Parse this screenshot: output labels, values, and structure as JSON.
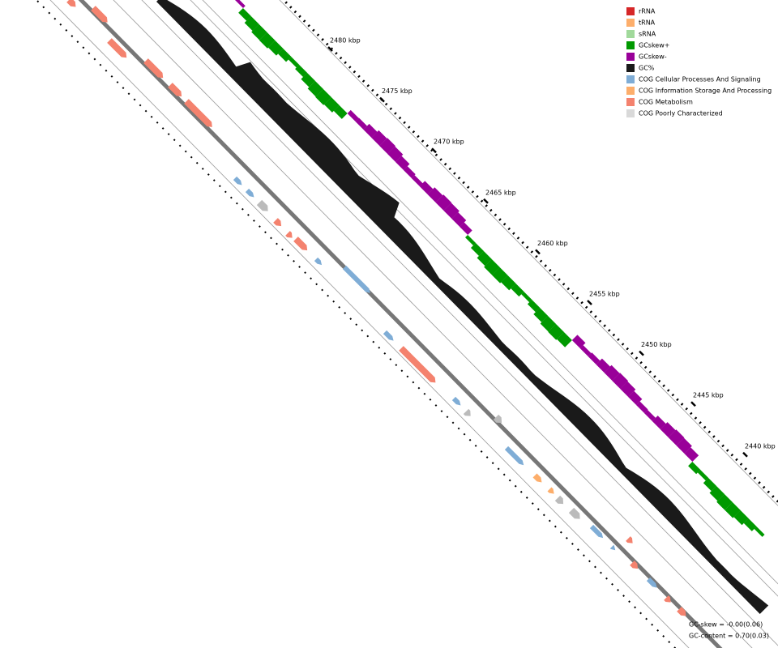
{
  "legend": [
    {
      "label": "rRNA",
      "color": "#d62728"
    },
    {
      "label": "tRNA",
      "color": "#fdae6b"
    },
    {
      "label": "sRNA",
      "color": "#a1d99b"
    },
    {
      "label": "GCskew+",
      "color": "#009900"
    },
    {
      "label": "GCskew-",
      "color": "#990099"
    },
    {
      "label": "GC%",
      "color": "#1a1a1a"
    },
    {
      "label": "COG Cellular Processes And Signaling",
      "color": "#7fadd6"
    },
    {
      "label": "COG Information Storage And Processing",
      "color": "#fdae6b"
    },
    {
      "label": "COG Metabolism",
      "color": "#f4826e"
    },
    {
      "label": "COG Poorly Characterized",
      "color": "#d9d9d9"
    }
  ],
  "scale_labels": [
    "2480 kbp",
    "2475 kbp",
    "2470 kbp",
    "2465 kbp",
    "2460 kbp",
    "2455 kbp",
    "2450 kbp",
    "2445 kbp",
    "2440 kbp"
  ],
  "stats": [
    "GC-skew = -0.00(0.06)",
    "GC-content = 0.70(0.03)"
  ]
}
